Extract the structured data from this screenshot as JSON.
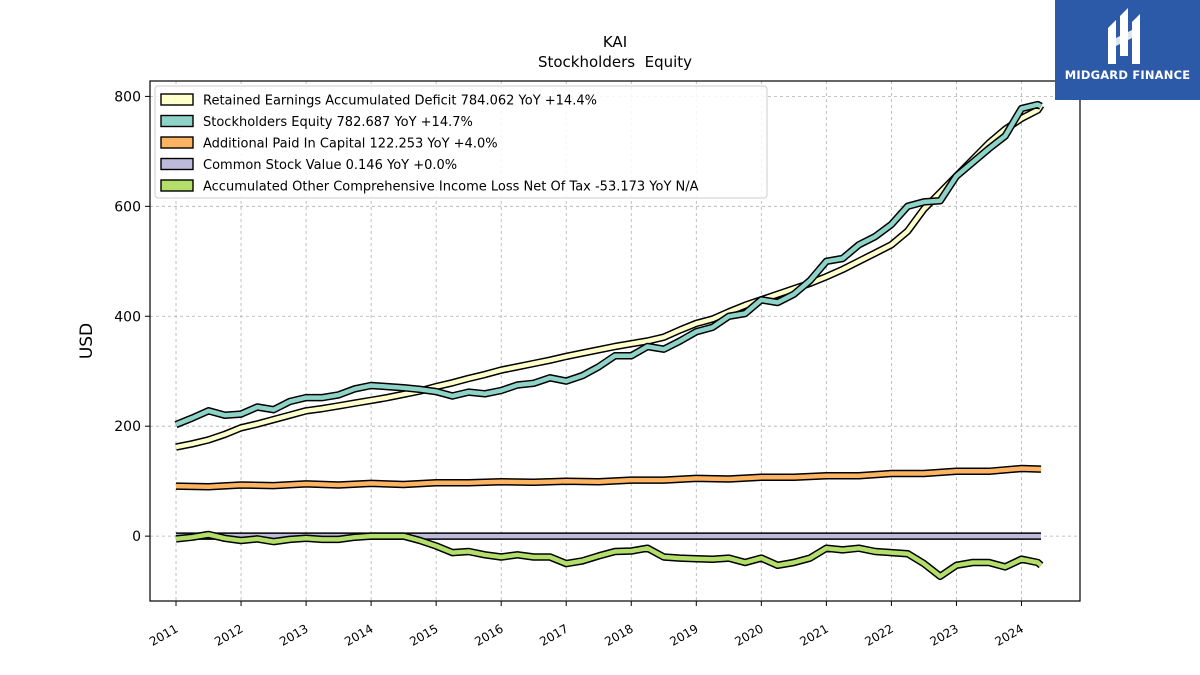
{
  "brand": {
    "name": "MIDGARD FINANCE",
    "bg_color": "#2d5aa8"
  },
  "chart_data": {
    "type": "line",
    "title": "KAI",
    "subtitle": "Stockholders  Equity",
    "ylabel": "USD",
    "xlabel": "",
    "xlim": [
      2010.6,
      2024.9
    ],
    "ylim": [
      -118,
      828
    ],
    "yticks": [
      0,
      200,
      400,
      600,
      800
    ],
    "xticks": [
      "2011",
      "2012",
      "2013",
      "2014",
      "2015",
      "2016",
      "2017",
      "2018",
      "2019",
      "2020",
      "2021",
      "2022",
      "2023",
      "2024"
    ],
    "grid": true,
    "legend_position": "top-left",
    "series": [
      {
        "name": "Retained Earnings Accumulated Deficit",
        "label": "Retained Earnings Accumulated Deficit  784.062 YoY +14.4%",
        "color": "#ffffcc",
        "x": [
          2011.0,
          2011.25,
          2011.5,
          2011.75,
          2012.0,
          2012.25,
          2012.5,
          2012.75,
          2013.0,
          2013.25,
          2013.5,
          2013.75,
          2014.0,
          2014.25,
          2014.5,
          2014.75,
          2015.0,
          2015.25,
          2015.5,
          2015.75,
          2016.0,
          2016.25,
          2016.5,
          2016.75,
          2017.0,
          2017.25,
          2017.5,
          2017.75,
          2018.0,
          2018.25,
          2018.5,
          2018.75,
          2019.0,
          2019.25,
          2019.5,
          2019.75,
          2020.0,
          2020.25,
          2020.5,
          2020.75,
          2021.0,
          2021.25,
          2021.5,
          2021.75,
          2022.0,
          2022.25,
          2022.5,
          2022.75,
          2023.0,
          2023.25,
          2023.5,
          2023.75,
          2024.0,
          2024.25,
          2024.3
        ],
        "values": [
          162,
          168,
          175,
          185,
          197,
          204,
          212,
          220,
          228,
          232,
          237,
          242,
          247,
          252,
          258,
          264,
          272,
          279,
          287,
          294,
          302,
          308,
          314,
          320,
          327,
          333,
          339,
          345,
          350,
          355,
          362,
          375,
          387,
          395,
          408,
          420,
          430,
          440,
          450,
          460,
          472,
          485,
          500,
          515,
          530,
          555,
          595,
          625,
          655,
          685,
          715,
          740,
          760,
          775,
          784
        ]
      },
      {
        "name": "Stockholders Equity",
        "label": "Stockholders Equity  782.687 YoY +14.7%",
        "color": "#8dd3c7",
        "x": [
          2011.0,
          2011.25,
          2011.5,
          2011.75,
          2012.0,
          2012.25,
          2012.5,
          2012.75,
          2013.0,
          2013.25,
          2013.5,
          2013.75,
          2014.0,
          2014.25,
          2014.5,
          2014.75,
          2015.0,
          2015.25,
          2015.5,
          2015.75,
          2016.0,
          2016.25,
          2016.5,
          2016.75,
          2017.0,
          2017.25,
          2017.5,
          2017.75,
          2018.0,
          2018.25,
          2018.5,
          2018.75,
          2019.0,
          2019.25,
          2019.5,
          2019.75,
          2020.0,
          2020.25,
          2020.5,
          2020.75,
          2021.0,
          2021.25,
          2021.5,
          2021.75,
          2022.0,
          2022.25,
          2022.5,
          2022.75,
          2023.0,
          2023.25,
          2023.5,
          2023.75,
          2024.0,
          2024.25,
          2024.3
        ],
        "values": [
          203,
          215,
          228,
          220,
          222,
          235,
          230,
          245,
          252,
          252,
          257,
          268,
          274,
          272,
          270,
          267,
          263,
          255,
          262,
          259,
          265,
          275,
          278,
          288,
          282,
          292,
          308,
          328,
          328,
          345,
          340,
          355,
          372,
          380,
          400,
          405,
          430,
          425,
          440,
          465,
          500,
          505,
          530,
          545,
          567,
          600,
          608,
          610,
          655,
          680,
          705,
          728,
          778,
          785,
          782
        ]
      },
      {
        "name": "Additional Paid In Capital",
        "label": "Additional Paid In Capital  122.253 YoY +4.0%",
        "color": "#fdb462",
        "x": [
          2011.0,
          2011.5,
          2012.0,
          2012.5,
          2013.0,
          2013.5,
          2014.0,
          2014.5,
          2015.0,
          2015.5,
          2016.0,
          2016.5,
          2017.0,
          2017.5,
          2018.0,
          2018.5,
          2019.0,
          2019.5,
          2020.0,
          2020.5,
          2021.0,
          2021.5,
          2022.0,
          2022.5,
          2023.0,
          2023.5,
          2024.0,
          2024.3
        ],
        "values": [
          91,
          90,
          93,
          92,
          95,
          93,
          96,
          94,
          97,
          97,
          99,
          98,
          100,
          99,
          102,
          102,
          105,
          104,
          107,
          107,
          110,
          110,
          114,
          114,
          118,
          118,
          123,
          122
        ]
      },
      {
        "name": "Common Stock Value",
        "label": "Common Stock Value  0.146 YoY +0.0%",
        "color": "#bebada",
        "x": [
          2011.0,
          2024.3
        ],
        "values": [
          0.146,
          0.146
        ]
      },
      {
        "name": "Accumulated Other Comprehensive Income Loss Net Of Tax",
        "label": "Accumulated Other Comprehensive Income Loss Net Of Tax  -53.173 YoY N/A",
        "color": "#b3de69",
        "x": [
          2011.0,
          2011.25,
          2011.5,
          2011.75,
          2012.0,
          2012.25,
          2012.5,
          2012.75,
          2013.0,
          2013.25,
          2013.5,
          2013.75,
          2014.0,
          2014.25,
          2014.5,
          2014.75,
          2015.0,
          2015.25,
          2015.5,
          2015.75,
          2016.0,
          2016.25,
          2016.5,
          2016.75,
          2017.0,
          2017.25,
          2017.5,
          2017.75,
          2018.0,
          2018.25,
          2018.5,
          2018.75,
          2019.0,
          2019.25,
          2019.5,
          2019.75,
          2020.0,
          2020.25,
          2020.5,
          2020.75,
          2021.0,
          2021.25,
          2021.5,
          2021.75,
          2022.0,
          2022.25,
          2022.5,
          2022.75,
          2023.0,
          2023.25,
          2023.5,
          2023.75,
          2024.0,
          2024.25,
          2024.3
        ],
        "values": [
          -5,
          -2,
          3,
          -4,
          -8,
          -5,
          -10,
          -6,
          -4,
          -6,
          -6,
          -2,
          0,
          0,
          0,
          -8,
          -18,
          -30,
          -28,
          -34,
          -38,
          -34,
          -38,
          -38,
          -50,
          -45,
          -36,
          -28,
          -27,
          -22,
          -38,
          -40,
          -41,
          -42,
          -40,
          -48,
          -40,
          -53,
          -48,
          -40,
          -22,
          -25,
          -22,
          -28,
          -30,
          -32,
          -50,
          -73,
          -53,
          -48,
          -48,
          -56,
          -42,
          -48,
          -53
        ]
      }
    ]
  }
}
